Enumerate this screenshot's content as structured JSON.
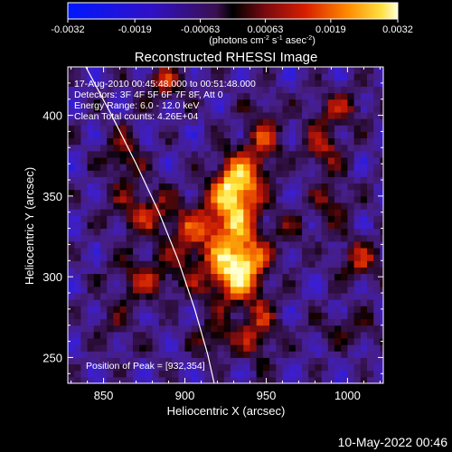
{
  "chart_data": {
    "type": "heatmap",
    "title": "Reconstructed RHESSI Image",
    "xlabel": "Heliocentric X (arcsec)",
    "ylabel": "Heliocentric Y (arcsec)",
    "xlim": [
      828,
      1022
    ],
    "ylim": [
      234,
      430
    ],
    "xticks": [
      850,
      900,
      950,
      1000
    ],
    "yticks": [
      250,
      300,
      350,
      400
    ],
    "xtick_labels": [
      "850",
      "900",
      "950",
      "1000"
    ],
    "ytick_labels": [
      "250",
      "300",
      "350",
      "400"
    ],
    "colorbar": {
      "range": [
        -0.0032,
        0.0032
      ],
      "ticks": [
        -0.0032,
        -0.0019,
        -0.00063,
        0.00063,
        0.0019,
        0.0032
      ],
      "tick_labels": [
        "-0.0032",
        "-0.0019",
        "-0.00063",
        "0.00063",
        "0.0019",
        "0.0032"
      ],
      "unit_main": "(photons cm",
      "unit_exp1": "-2",
      "unit_mid": " s",
      "unit_exp2": "-1",
      "unit_end": " asec",
      "unit_exp3": "-2",
      "unit_close": ")"
    },
    "annotations": {
      "time_range": "17-Aug-2010 00:45:48.000 to 00:51:48.000",
      "detectors": "Detectors: 3F 4F 5F 6F 7F 8F, Att 0",
      "energy": "Energy Range: 6.0 - 12.0 keV",
      "clean": "Clean    Total counts: 4.26E+04",
      "peak": "Position of Peak = [932,354]"
    },
    "peak_position": [
      932,
      354
    ],
    "sources": [
      {
        "x": 932,
        "y": 355,
        "amp": 1.0,
        "sx": 10,
        "sy": 14
      },
      {
        "x": 922,
        "y": 330,
        "amp": 0.55,
        "sx": 14,
        "sy": 12
      },
      {
        "x": 928,
        "y": 300,
        "amp": 0.75,
        "sx": 12,
        "sy": 12
      },
      {
        "x": 938,
        "y": 312,
        "amp": 0.55,
        "sx": 10,
        "sy": 10
      },
      {
        "x": 948,
        "y": 385,
        "amp": 0.45,
        "sx": 8,
        "sy": 14
      },
      {
        "x": 945,
        "y": 268,
        "amp": 0.45,
        "sx": 8,
        "sy": 14
      },
      {
        "x": 920,
        "y": 262,
        "amp": 0.35,
        "sx": 10,
        "sy": 8
      },
      {
        "x": 875,
        "y": 340,
        "amp": 0.45,
        "sx": 14,
        "sy": 10
      },
      {
        "x": 862,
        "y": 375,
        "amp": 0.4,
        "sx": 8,
        "sy": 12
      },
      {
        "x": 875,
        "y": 300,
        "amp": 0.4,
        "sx": 14,
        "sy": 10
      },
      {
        "x": 900,
        "y": 320,
        "amp": 0.3,
        "sx": 8,
        "sy": 16
      },
      {
        "x": 985,
        "y": 380,
        "amp": 0.45,
        "sx": 8,
        "sy": 10
      },
      {
        "x": 995,
        "y": 405,
        "amp": 0.35,
        "sx": 12,
        "sy": 8
      },
      {
        "x": 1008,
        "y": 310,
        "amp": 0.4,
        "sx": 10,
        "sy": 10
      },
      {
        "x": 990,
        "y": 345,
        "amp": 0.35,
        "sx": 8,
        "sy": 10
      },
      {
        "x": 1000,
        "y": 268,
        "amp": 0.25,
        "sx": 14,
        "sy": 8
      },
      {
        "x": 888,
        "y": 420,
        "amp": 0.4,
        "sx": 10,
        "sy": 8
      },
      {
        "x": 858,
        "y": 270,
        "amp": 0.2,
        "sx": 10,
        "sy": 10
      },
      {
        "x": 965,
        "y": 330,
        "amp": 0.2,
        "sx": 8,
        "sy": 10
      }
    ],
    "limb": {
      "points": [
        [
          838,
          432
        ],
        [
          855,
          400
        ],
        [
          870,
          370
        ],
        [
          884,
          340
        ],
        [
          896,
          310
        ],
        [
          906,
          280
        ],
        [
          914,
          252
        ],
        [
          918,
          234
        ]
      ]
    }
  },
  "footer": {
    "timestamp": "10-May-2022 00:46"
  }
}
